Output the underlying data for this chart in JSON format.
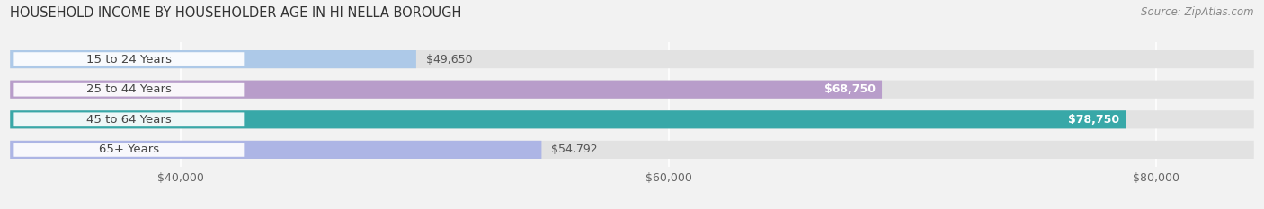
{
  "title": "HOUSEHOLD INCOME BY HOUSEHOLDER AGE IN HI NELLA BOROUGH",
  "source": "Source: ZipAtlas.com",
  "categories": [
    "15 to 24 Years",
    "25 to 44 Years",
    "45 to 64 Years",
    "65+ Years"
  ],
  "values": [
    49650,
    68750,
    78750,
    54792
  ],
  "bar_colors": [
    "#adc9e8",
    "#b89dca",
    "#38a8a8",
    "#adb5e5"
  ],
  "bar_labels": [
    "$49,650",
    "$68,750",
    "$78,750",
    "$54,792"
  ],
  "label_inside": [
    false,
    true,
    true,
    false
  ],
  "xlim_min": 33000,
  "xlim_max": 84000,
  "xticks": [
    40000,
    60000,
    80000
  ],
  "xticklabels": [
    "$40,000",
    "$60,000",
    "$80,000"
  ],
  "background_color": "#f2f2f2",
  "bar_bg_color": "#e2e2e2",
  "title_fontsize": 10.5,
  "source_fontsize": 8.5,
  "tick_fontsize": 9,
  "label_fontsize": 9,
  "category_fontsize": 9.5
}
